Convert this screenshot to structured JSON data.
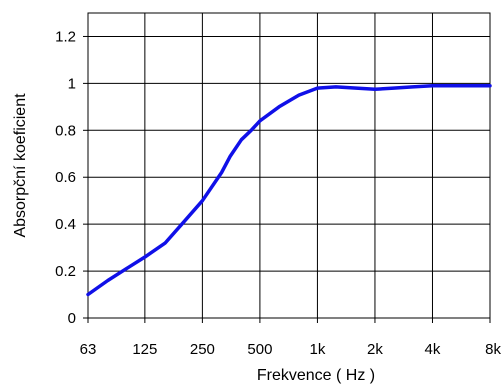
{
  "chart_data": {
    "type": "line",
    "xlabel": "Frekvence  ( Hz )",
    "ylabel": "Absorpční koeficient",
    "x_scale": "log2",
    "x_ticks": [
      {
        "value": 63,
        "label": "63"
      },
      {
        "value": 125,
        "label": "125"
      },
      {
        "value": 250,
        "label": "250"
      },
      {
        "value": 500,
        "label": "500"
      },
      {
        "value": 1000,
        "label": "1k"
      },
      {
        "value": 2000,
        "label": "2k"
      },
      {
        "value": 4000,
        "label": "4k"
      },
      {
        "value": 8000,
        "label": "8k"
      }
    ],
    "y_ticks": [
      {
        "value": 0,
        "label": "0"
      },
      {
        "value": 0.2,
        "label": "0.2"
      },
      {
        "value": 0.4,
        "label": "0.4"
      },
      {
        "value": 0.6,
        "label": "0.6"
      },
      {
        "value": 0.8,
        "label": "0.8"
      },
      {
        "value": 1,
        "label": "1"
      },
      {
        "value": 1.2,
        "label": "1.2"
      }
    ],
    "xlim": [
      63,
      8000
    ],
    "ylim": [
      0,
      1.3
    ],
    "grid": true,
    "series": [
      {
        "color": "#1010e8",
        "x": [
          63,
          80,
          100,
          125,
          160,
          200,
          250,
          315,
          350,
          400,
          450,
          500,
          630,
          800,
          1000,
          1250,
          1600,
          2000,
          2500,
          3150,
          4000,
          5000,
          6300,
          8000
        ],
        "y": [
          0.1,
          0.16,
          0.21,
          0.26,
          0.32,
          0.41,
          0.5,
          0.62,
          0.69,
          0.76,
          0.8,
          0.84,
          0.9,
          0.95,
          0.98,
          0.985,
          0.98,
          0.975,
          0.98,
          0.985,
          0.99,
          0.99,
          0.99,
          0.99
        ]
      }
    ]
  }
}
